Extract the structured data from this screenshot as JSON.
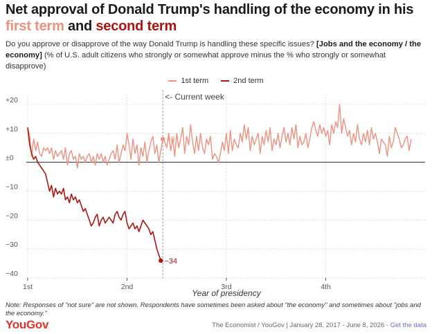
{
  "header": {
    "title_part1": "Net approval of Donald Trump's handling of the economy in his",
    "title_first_term": "first term",
    "title_and": " and ",
    "title_second_term": "second term",
    "subtitle_lead": "Do you approve or disapprove of the way Donald Trump is handling these specific issues? ",
    "subtitle_bold": "[Jobs and the economy / the economy]",
    "subtitle_rest": " (% of U.S. adult citizens who strongly or somewhat approve minus the % who strongly or somewhat disapprove)"
  },
  "legend": {
    "first_term": "1st term",
    "second_term": "2nd term"
  },
  "colors": {
    "first_term": "#f0907f",
    "second_term": "#b0130f",
    "brand": "#e4322b",
    "link": "#6b6fd4"
  },
  "chart_data": {
    "type": "line",
    "xlabel": "Year of presidency",
    "ylabel": "",
    "xlim": [
      0,
      200
    ],
    "ylim": [
      -40,
      25
    ],
    "y_ticks": [
      -40,
      -30,
      -20,
      -10,
      0,
      10,
      20
    ],
    "y_tick_labels": [
      "−40",
      "−30",
      "−20",
      "−10",
      "±0",
      "+10",
      "+20"
    ],
    "x_ticks": [
      0,
      50,
      100,
      150
    ],
    "x_tick_labels": [
      "1st",
      "2nd",
      "3rd",
      "4th"
    ],
    "x_unit": "weeks since inauguration",
    "grid": "horizontal dashed",
    "legend_position": "top-center",
    "current_week": 68,
    "current_week_label": "<- Current week",
    "series": [
      {
        "name": "1st term",
        "values": [
          12,
          9,
          2,
          8,
          4,
          7,
          3,
          2,
          5,
          4,
          5,
          3,
          5,
          1,
          4,
          2,
          3,
          4,
          1,
          5,
          -1,
          3,
          4,
          1,
          2,
          -2,
          3,
          1,
          2,
          0,
          2,
          3,
          0,
          2,
          -1,
          3,
          1,
          3,
          0,
          2,
          -1,
          1,
          3,
          4,
          1,
          6,
          0,
          3,
          6,
          4,
          10,
          6,
          1,
          8,
          3,
          6,
          -1,
          5,
          2,
          7,
          0,
          4,
          7,
          9,
          3,
          6,
          0,
          4,
          8,
          7,
          5,
          10,
          4,
          8,
          2,
          10,
          5,
          8,
          12,
          3,
          9,
          6,
          13,
          7,
          3,
          9,
          4,
          10,
          5,
          3,
          8,
          6,
          9,
          1,
          3,
          2,
          0,
          3,
          7,
          4,
          10,
          3,
          11,
          4,
          8,
          6,
          5,
          10,
          7,
          13,
          8,
          12,
          4,
          9,
          6,
          8,
          10,
          3,
          9,
          6,
          11,
          7,
          12,
          4,
          8,
          6,
          10,
          5,
          9,
          12,
          7,
          10,
          6,
          12,
          8,
          13,
          5,
          9,
          6,
          7,
          10,
          5,
          8,
          12,
          14,
          11,
          9,
          13,
          10,
          12,
          9,
          11,
          6,
          13,
          10,
          14,
          12,
          20,
          10,
          15,
          12,
          9,
          11,
          6,
          10,
          7,
          13,
          8,
          6,
          10,
          7,
          11,
          6,
          12,
          8,
          10,
          7,
          3,
          8,
          7,
          6,
          2,
          9,
          5,
          7,
          12,
          10,
          8,
          5,
          6,
          8,
          9,
          4,
          8
        ],
        "end_label": "+8"
      },
      {
        "name": "2nd term",
        "values": [
          12,
          6,
          3,
          1,
          2,
          0,
          -1,
          -2,
          -3,
          -4,
          -7,
          -10,
          -8,
          -12,
          -9,
          -11,
          -10,
          -11,
          -9,
          -13,
          -12,
          -14,
          -11,
          -13,
          -12,
          -14,
          -13,
          -15,
          -17,
          -16,
          -18,
          -20,
          -22,
          -21,
          -19,
          -18,
          -22,
          -20,
          -19,
          -21,
          -20,
          -19,
          -20,
          -21,
          -18,
          -17,
          -19,
          -20,
          -18,
          -17,
          -21,
          -23,
          -22,
          -21,
          -23,
          -22,
          -24,
          -22,
          -20,
          -21,
          -22,
          -23,
          -25,
          -24,
          -27,
          -30,
          -32,
          -34
        ],
        "end_label": "−34"
      }
    ]
  },
  "footer": {
    "note": "Note: Responses of \"not sure\" are not shown. Respondents have sometimes been asked about \"the economy\" and sometimes about \"jobs and the economy.\"",
    "logo": "YouGov",
    "source": "The Economist / YouGov | January 28, 2017 - June 8, 2026 · ",
    "link": "Get the data"
  }
}
